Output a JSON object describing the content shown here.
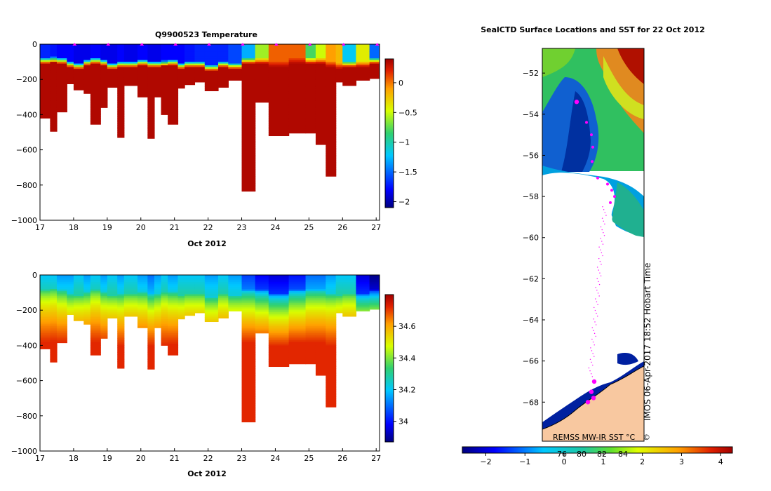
{
  "chart_data": [
    {
      "type": "heatmap",
      "title": "Q9900523  Temperature",
      "xlabel": "Oct 2012",
      "x_ticks": [
        "17",
        "18",
        "19",
        "20",
        "21",
        "22",
        "23",
        "24",
        "25",
        "26",
        "27"
      ],
      "xlim": [
        17,
        27.1
      ],
      "y_ticks": [
        "0",
        "−200",
        "−400",
        "−600",
        "−800",
        "−1000"
      ],
      "ylim": [
        -1000,
        0
      ],
      "colorbar_ticks": [
        "0",
        "−0.5",
        "−1",
        "−1.5",
        "−2"
      ],
      "colorbar_range": [
        -2.1,
        0.4
      ],
      "profile_markers_days": [
        18,
        19,
        20,
        21,
        22,
        23,
        24,
        25,
        26,
        27
      ],
      "profiles": [
        {
          "start": 17.0,
          "end": 17.3,
          "depth": 420,
          "surface": -1.7,
          "thermocline": 90
        },
        {
          "start": 17.3,
          "end": 17.5,
          "depth": 495,
          "surface": -1.75,
          "thermocline": 85
        },
        {
          "start": 17.5,
          "end": 17.8,
          "depth": 385,
          "surface": -1.8,
          "thermocline": 90
        },
        {
          "start": 17.8,
          "end": 18.0,
          "depth": 225,
          "surface": -1.8,
          "thermocline": 110
        },
        {
          "start": 18.0,
          "end": 18.3,
          "depth": 260,
          "surface": -1.85,
          "thermocline": 120
        },
        {
          "start": 18.3,
          "end": 18.5,
          "depth": 280,
          "surface": -1.85,
          "thermocline": 100
        },
        {
          "start": 18.5,
          "end": 18.8,
          "depth": 455,
          "surface": -1.8,
          "thermocline": 90
        },
        {
          "start": 18.8,
          "end": 19.0,
          "depth": 360,
          "surface": -1.85,
          "thermocline": 100
        },
        {
          "start": 19.0,
          "end": 19.3,
          "depth": 245,
          "surface": -1.85,
          "thermocline": 120
        },
        {
          "start": 19.3,
          "end": 19.5,
          "depth": 530,
          "surface": -1.8,
          "thermocline": 110
        },
        {
          "start": 19.5,
          "end": 19.9,
          "depth": 235,
          "surface": -1.85,
          "thermocline": 110
        },
        {
          "start": 19.9,
          "end": 20.2,
          "depth": 300,
          "surface": -1.8,
          "thermocline": 100
        },
        {
          "start": 20.2,
          "end": 20.4,
          "depth": 535,
          "surface": -1.85,
          "thermocline": 110
        },
        {
          "start": 20.4,
          "end": 20.6,
          "depth": 300,
          "surface": -1.85,
          "thermocline": 110
        },
        {
          "start": 20.6,
          "end": 20.8,
          "depth": 400,
          "surface": -1.8,
          "thermocline": 105
        },
        {
          "start": 20.8,
          "end": 21.1,
          "depth": 455,
          "surface": -1.8,
          "thermocline": 100
        },
        {
          "start": 21.1,
          "end": 21.3,
          "depth": 250,
          "surface": -1.8,
          "thermocline": 120
        },
        {
          "start": 21.3,
          "end": 21.6,
          "depth": 230,
          "surface": -1.75,
          "thermocline": 110
        },
        {
          "start": 21.6,
          "end": 21.9,
          "depth": 215,
          "surface": -1.7,
          "thermocline": 110
        },
        {
          "start": 21.9,
          "end": 22.3,
          "depth": 265,
          "surface": -1.7,
          "thermocline": 130
        },
        {
          "start": 22.3,
          "end": 22.6,
          "depth": 245,
          "surface": -1.7,
          "thermocline": 110
        },
        {
          "start": 22.6,
          "end": 23.0,
          "depth": 205,
          "surface": -1.6,
          "thermocline": 120
        },
        {
          "start": 23.0,
          "end": 23.4,
          "depth": 835,
          "surface": -1.3,
          "thermocline": 90
        },
        {
          "start": 23.4,
          "end": 23.8,
          "depth": 330,
          "surface": -0.6,
          "thermocline": 90
        },
        {
          "start": 23.8,
          "end": 24.4,
          "depth": 520,
          "surface": 0.05,
          "thermocline": 110
        },
        {
          "start": 24.4,
          "end": 24.9,
          "depth": 505,
          "surface": 0.05,
          "thermocline": 90
        },
        {
          "start": 24.9,
          "end": 25.2,
          "depth": 505,
          "surface": -0.8,
          "thermocline": 90
        },
        {
          "start": 25.2,
          "end": 25.5,
          "depth": 570,
          "surface": -0.5,
          "thermocline": 90
        },
        {
          "start": 25.5,
          "end": 25.8,
          "depth": 750,
          "surface": -0.1,
          "thermocline": 110
        },
        {
          "start": 25.8,
          "end": 26.0,
          "depth": 215,
          "surface": -0.2,
          "thermocline": 120
        },
        {
          "start": 26.0,
          "end": 26.4,
          "depth": 235,
          "surface": -1.2,
          "thermocline": 110
        },
        {
          "start": 26.4,
          "end": 26.8,
          "depth": 205,
          "surface": -0.4,
          "thermocline": 110
        },
        {
          "start": 26.8,
          "end": 27.1,
          "depth": 195,
          "surface": -1.5,
          "thermocline": 90
        }
      ]
    },
    {
      "type": "heatmap",
      "title": "",
      "variable": "salinity",
      "xlabel": "Oct 2012",
      "x_ticks": [
        "17",
        "18",
        "19",
        "20",
        "21",
        "22",
        "23",
        "24",
        "25",
        "26",
        "27"
      ],
      "xlim": [
        17,
        27.1
      ],
      "y_ticks": [
        "0",
        "−200",
        "−400",
        "−600",
        "−800",
        "−1000"
      ],
      "ylim": [
        -1000,
        0
      ],
      "colorbar_ticks": [
        "34.6",
        "34.4",
        "34.2",
        "34"
      ],
      "colorbar_range": [
        33.87,
        34.8
      ],
      "profiles_ref": "same profile footprint as temperature panel",
      "surface_salinity": [
        34.2,
        34.2,
        34.15,
        34.15,
        34.2,
        34.15,
        34.2,
        34.15,
        34.2,
        34.15,
        34.2,
        34.15,
        34.1,
        34.15,
        34.2,
        34.15,
        34.2,
        34.2,
        34.2,
        34.15,
        34.2,
        34.15,
        34.05,
        33.98,
        33.95,
        34.0,
        34.1,
        34.1,
        34.15,
        34.2,
        34.2,
        33.95,
        33.88
      ]
    },
    {
      "type": "heatmap",
      "title": "SealCTD Surface Locations and SST for 22 Oct 2012",
      "y_ticks": [
        "−52",
        "−54",
        "−56",
        "−58",
        "−60",
        "−62",
        "−64",
        "−66",
        "−68"
      ],
      "ylim": [
        -69.9,
        -50.8
      ],
      "colorbar_ticks": [
        "−2",
        "−1",
        "0",
        "1",
        "2",
        "3",
        "4"
      ],
      "colorbar_range": [
        -2.6,
        4.3
      ],
      "map_ticks_bottom": [
        "76",
        "80",
        "82",
        "84"
      ],
      "credit": "IMOS 06-Apr-2017 18:52 Hobart Time",
      "source_label": "REMSS MW-IR SST °C",
      "copyright_symbol": "©",
      "track_latitudes": [
        -53.4,
        -54.4,
        -55.0,
        -55.6,
        -56.3,
        -57.1,
        -57.4,
        -57.7,
        -58.0,
        -58.3,
        -67.0,
        -67.5,
        -67.8,
        -68.0
      ]
    }
  ]
}
